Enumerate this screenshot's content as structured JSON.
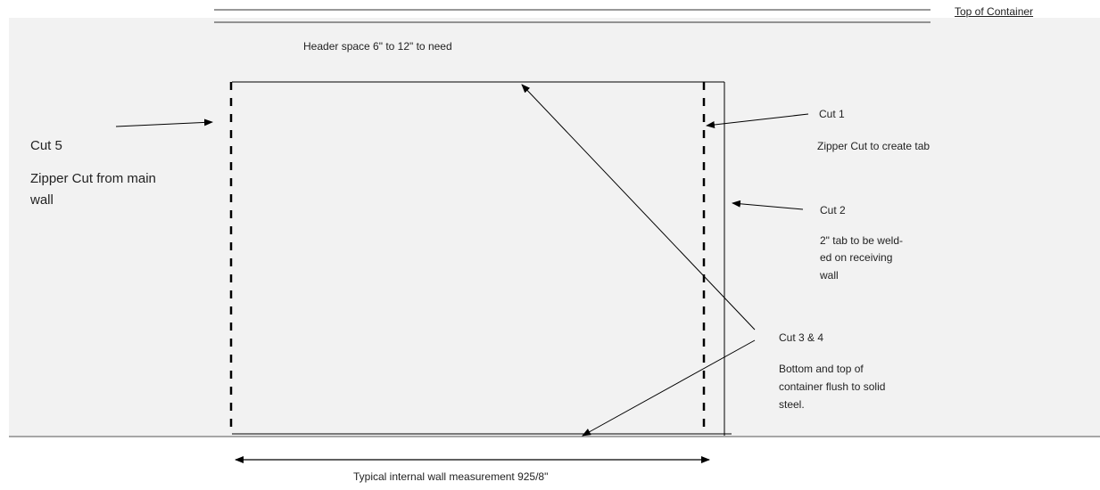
{
  "labels": {
    "top_of_container": "Top of Container",
    "header_space": "Header space 6\" to 12\"  to need",
    "cut5_title": "Cut 5",
    "cut5_desc_line1": "Zipper Cut from main",
    "cut5_desc_line2": "wall",
    "cut1_title": "Cut 1",
    "cut1_desc": "Zipper Cut to create tab",
    "cut2_title": "Cut 2",
    "cut2_desc_line1": "2\" tab to be weld-",
    "cut2_desc_line2": "ed on receiving",
    "cut2_desc_line3": "wall",
    "cut34_title": "Cut 3 & 4",
    "cut34_desc_line1": "Bottom  and top of",
    "cut34_desc_line2": "container flush to solid",
    "cut34_desc_line3": "steel.",
    "measurement": "Typical internal wall measurement   925/8\""
  },
  "colors": {
    "background_panel": "#f2f2f2",
    "line": "#000000",
    "text": "#222222"
  }
}
